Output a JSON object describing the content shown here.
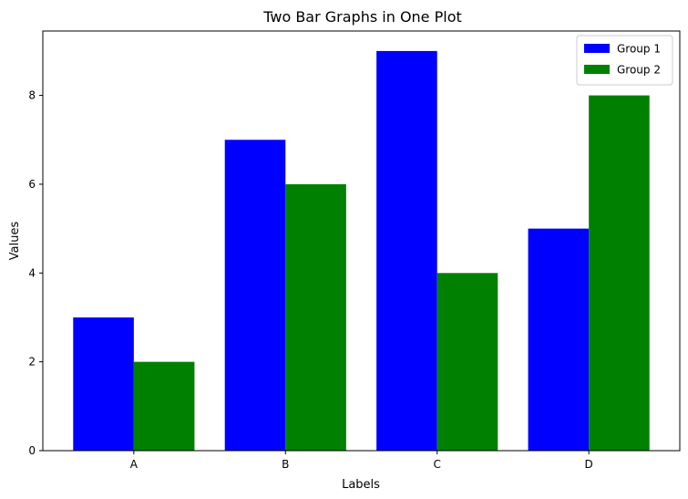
{
  "chart_data": {
    "type": "bar",
    "title": "Two Bar Graphs in One Plot",
    "xlabel": "Labels",
    "ylabel": "Values",
    "categories": [
      "A",
      "B",
      "C",
      "D"
    ],
    "series": [
      {
        "name": "Group 1",
        "values": [
          3,
          7,
          9,
          5
        ],
        "color": "#0000ff"
      },
      {
        "name": "Group 2",
        "values": [
          2,
          6,
          4,
          8
        ],
        "color": "#008000"
      }
    ],
    "ylim": [
      0,
      9.45
    ],
    "yticks": [
      0,
      2,
      4,
      6,
      8
    ],
    "grid": false,
    "legend_position": "top-right"
  }
}
